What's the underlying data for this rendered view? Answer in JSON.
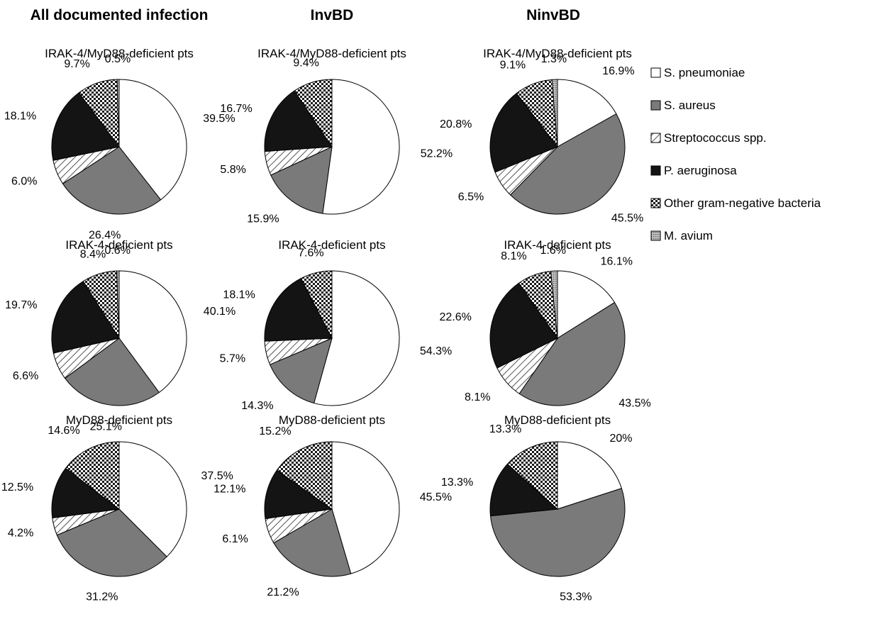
{
  "chart_data": [
    {
      "type": "pie",
      "group": "All documented infection",
      "title": "IRAK-4/MyD88-deficient pts",
      "categories": [
        "S. pneumoniae",
        "S. aureus",
        "Streptococcus spp.",
        "P. aeruginosa",
        "Other gram-negative bacteria",
        "M. avium"
      ],
      "values": [
        39.5,
        26.4,
        6.0,
        18.1,
        9.7,
        0.5
      ],
      "labels": [
        "39.5%",
        "26.4%",
        "6.0%",
        "18.1%",
        "9.7%",
        "0.5%"
      ]
    },
    {
      "type": "pie",
      "group": "InvBD",
      "title": "IRAK-4/MyD88-deficient pts",
      "categories": [
        "S. pneumoniae",
        "S. aureus",
        "Streptococcus spp.",
        "P. aeruginosa",
        "Other gram-negative bacteria"
      ],
      "values": [
        52.2,
        15.9,
        5.8,
        16.7,
        9.4
      ],
      "labels": [
        "52.2%",
        "15.9%",
        "5.8%",
        "16.7%",
        "9.4%"
      ]
    },
    {
      "type": "pie",
      "group": "NinvBD",
      "title": "IRAK-4/MyD88-deficient pts",
      "categories": [
        "S. pneumoniae",
        "S. aureus",
        "Streptococcus spp.",
        "P. aeruginosa",
        "Other gram-negative bacteria",
        "M. avium"
      ],
      "values": [
        16.9,
        45.5,
        6.5,
        20.8,
        9.1,
        1.3
      ],
      "labels": [
        "16.9%",
        "45.5%",
        "6.5%",
        "20.8%",
        "9.1%",
        "1.3%"
      ]
    },
    {
      "type": "pie",
      "group": "All documented infection",
      "title": "IRAK-4-deficient pts",
      "categories": [
        "S. pneumoniae",
        "S. aureus",
        "Streptococcus spp.",
        "P. aeruginosa",
        "Other gram-negative bacteria",
        "M. avium"
      ],
      "values": [
        40.1,
        25.1,
        6.6,
        19.7,
        8.4,
        0.6
      ],
      "labels": [
        "40.1%",
        "25.1%",
        "6.6%",
        "19.7%",
        "8.4%",
        "0.6%"
      ]
    },
    {
      "type": "pie",
      "group": "InvBD",
      "title": "IRAK-4-deficient pts",
      "categories": [
        "S. pneumoniae",
        "S. aureus",
        "Streptococcus spp.",
        "P. aeruginosa",
        "Other gram-negative bacteria"
      ],
      "values": [
        54.3,
        14.3,
        5.7,
        18.1,
        7.6
      ],
      "labels": [
        "54.3%",
        "14.3%",
        "5.7%",
        "18.1%",
        "7.6%"
      ]
    },
    {
      "type": "pie",
      "group": "NinvBD",
      "title": "IRAK-4-deficient pts",
      "categories": [
        "S. pneumoniae",
        "S. aureus",
        "Streptococcus spp.",
        "P. aeruginosa",
        "Other gram-negative bacteria",
        "M. avium"
      ],
      "values": [
        16.1,
        43.5,
        8.1,
        22.6,
        8.1,
        1.6
      ],
      "labels": [
        "16.1%",
        "43.5%",
        "8.1%",
        "22.6%",
        "8.1%",
        "1.6%"
      ]
    },
    {
      "type": "pie",
      "group": "All documented infection",
      "title": "MyD88-deficient pts",
      "categories": [
        "S. pneumoniae",
        "S. aureus",
        "Streptococcus spp.",
        "P. aeruginosa",
        "Other gram-negative bacteria"
      ],
      "values": [
        37.5,
        31.2,
        4.2,
        12.5,
        14.6
      ],
      "labels": [
        "37.5%",
        "31.2%",
        "4.2%",
        "12.5%",
        "14.6%"
      ]
    },
    {
      "type": "pie",
      "group": "InvBD",
      "title": "MyD88-deficient pts",
      "categories": [
        "S. pneumoniae",
        "S. aureus",
        "Streptococcus spp.",
        "P. aeruginosa",
        "Other gram-negative bacteria"
      ],
      "values": [
        45.5,
        21.2,
        6.1,
        12.1,
        15.2
      ],
      "labels": [
        "45.5%",
        "21.2%",
        "6.1%",
        "12.1%",
        "15.2%"
      ]
    },
    {
      "type": "pie",
      "group": "NinvBD",
      "title": "MyD88-deficient pts",
      "categories": [
        "S. pneumoniae",
        "S. aureus",
        "P. aeruginosa",
        "Other gram-negative bacteria"
      ],
      "values": [
        20,
        53.3,
        13.3,
        13.3
      ],
      "labels": [
        "20%",
        "53.3%",
        "13.3%",
        "13.3%"
      ]
    }
  ],
  "column_titles": [
    "All documented infection",
    "InvBD",
    "NinvBD"
  ],
  "legend": [
    {
      "label": "S. pneumoniae",
      "pattern": "white"
    },
    {
      "label": "S. aureus",
      "pattern": "gray"
    },
    {
      "label": "Streptococcus spp.",
      "pattern": "diagonal"
    },
    {
      "label": "P. aeruginosa",
      "pattern": "black"
    },
    {
      "label": "Other gram-negative bacteria",
      "pattern": "checker"
    },
    {
      "label": "M. avium",
      "pattern": "dots"
    }
  ],
  "colors": {
    "gray": "#7a7a7a",
    "black": "#141414",
    "dots": "#9a9a9a"
  }
}
